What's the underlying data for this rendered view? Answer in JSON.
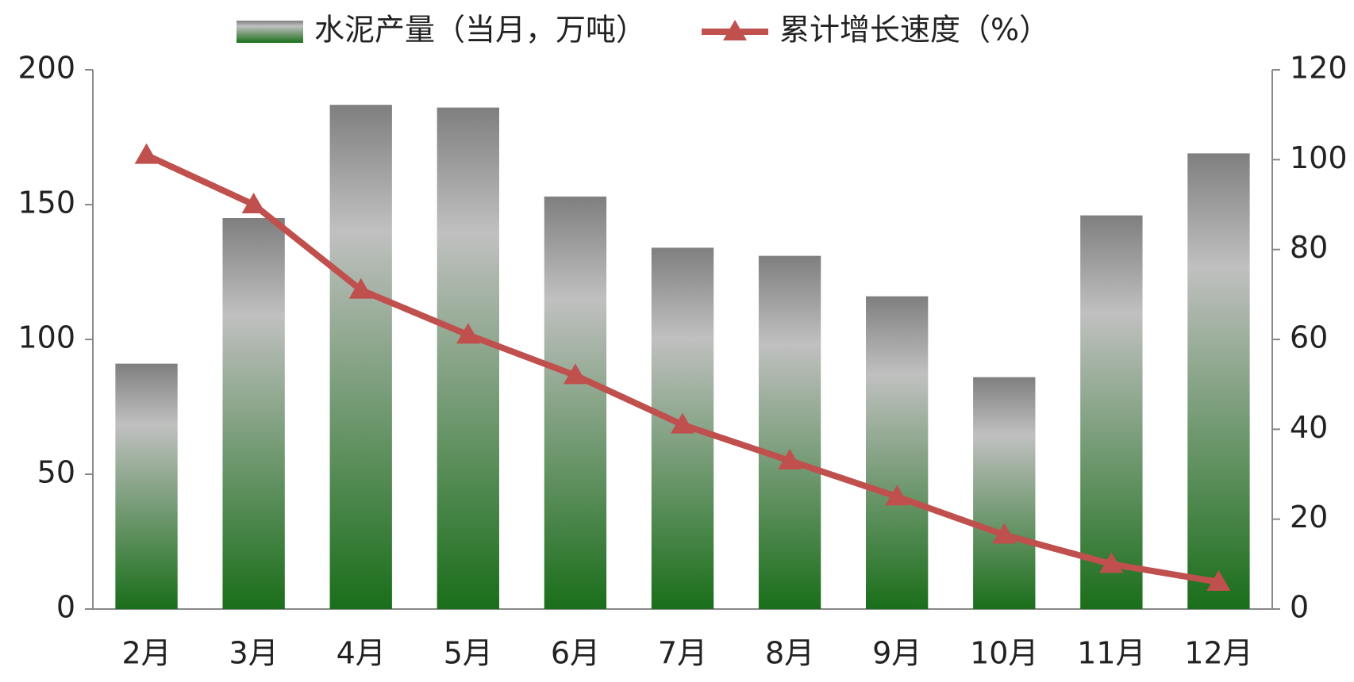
{
  "chart_data": {
    "type": "bar_line",
    "categories": [
      "2月",
      "3月",
      "4月",
      "5月",
      "6月",
      "7月",
      "8月",
      "9月",
      "10月",
      "11月",
      "12月"
    ],
    "series": [
      {
        "name": "水泥产量（当月，万吨）",
        "type": "bar",
        "color": "#1a6e1a",
        "values": [
          91,
          145,
          187,
          186,
          153,
          134,
          131,
          116,
          86,
          146,
          169
        ]
      },
      {
        "name": "累计增长速度（%）",
        "type": "line",
        "axis": "y2",
        "color": "#c0504d",
        "values": [
          101,
          90,
          71,
          61,
          52,
          41,
          33,
          25,
          16.5,
          10,
          6
        ]
      }
    ],
    "ylim": [
      0,
      200
    ],
    "yticks": [
      0,
      50,
      100,
      150,
      200
    ],
    "y2lim": [
      0,
      120
    ],
    "y2ticks": [
      0,
      20,
      40,
      60,
      80,
      100,
      120
    ],
    "grid": false,
    "legend": "top"
  }
}
